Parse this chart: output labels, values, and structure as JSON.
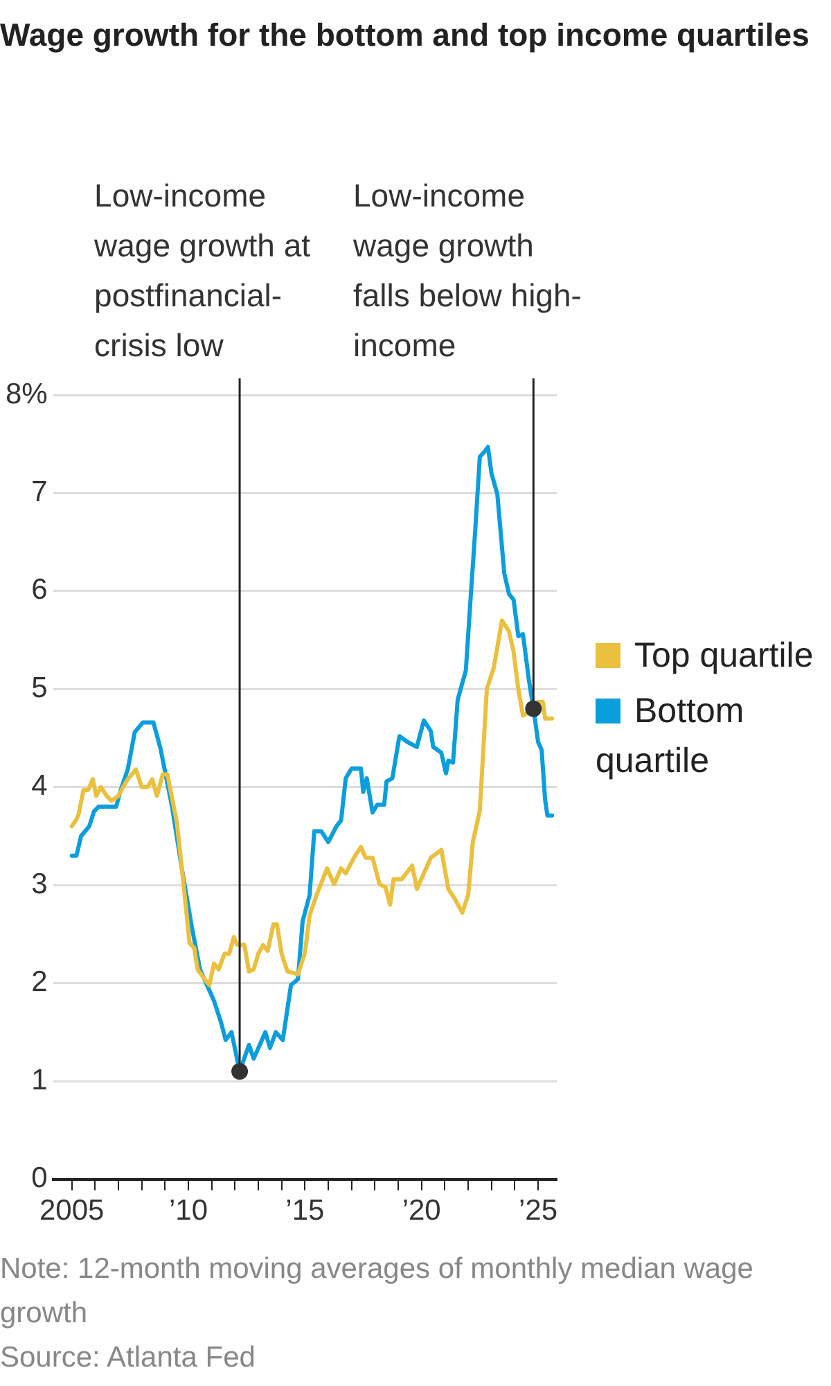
{
  "chart_data": {
    "type": "line",
    "title": "Wage growth for the bottom and top income quartiles",
    "xlim": [
      2004.2,
      2025.8
    ],
    "ylim": [
      0,
      8
    ],
    "xticks": [
      {
        "value": 2005,
        "label": "2005"
      },
      {
        "value": 2006,
        "label": null
      },
      {
        "value": 2007,
        "label": null
      },
      {
        "value": 2008,
        "label": null
      },
      {
        "value": 2009,
        "label": null
      },
      {
        "value": 2010,
        "label": "’10"
      },
      {
        "value": 2011,
        "label": null
      },
      {
        "value": 2012,
        "label": null
      },
      {
        "value": 2013,
        "label": null
      },
      {
        "value": 2014,
        "label": null
      },
      {
        "value": 2015,
        "label": "’15"
      },
      {
        "value": 2016,
        "label": null
      },
      {
        "value": 2017,
        "label": null
      },
      {
        "value": 2018,
        "label": null
      },
      {
        "value": 2019,
        "label": null
      },
      {
        "value": 2020,
        "label": "’20"
      },
      {
        "value": 2021,
        "label": null
      },
      {
        "value": 2022,
        "label": null
      },
      {
        "value": 2023,
        "label": null
      },
      {
        "value": 2024,
        "label": null
      },
      {
        "value": 2025,
        "label": "’25"
      }
    ],
    "yticks": [
      0,
      1,
      2,
      3,
      4,
      5,
      6,
      7,
      {
        "value": 8,
        "label": "8%"
      }
    ],
    "grid": "y",
    "legend": "right",
    "marker": "none",
    "line_style": "solid",
    "series": [
      {
        "name": "Top quartile",
        "color": "#ebc03f",
        "x": [
          2005.0,
          2005.2,
          2005.3,
          2005.5,
          2005.7,
          2005.9,
          2006.05,
          2006.25,
          2006.5,
          2006.7,
          2007.0,
          2007.2,
          2007.4,
          2007.75,
          2008.0,
          2008.25,
          2008.45,
          2008.65,
          2008.9,
          2009.1,
          2009.5,
          2009.75,
          2010.05,
          2010.25,
          2010.4,
          2010.7,
          2010.9,
          2011.1,
          2011.3,
          2011.55,
          2011.75,
          2011.95,
          2012.1,
          2012.4,
          2012.6,
          2012.8,
          2013.0,
          2013.2,
          2013.4,
          2013.65,
          2013.8,
          2014.0,
          2014.25,
          2014.7,
          2015.0,
          2015.2,
          2015.5,
          2015.95,
          2016.25,
          2016.55,
          2016.75,
          2017.1,
          2017.4,
          2017.6,
          2017.9,
          2018.2,
          2018.45,
          2018.65,
          2018.8,
          2019.15,
          2019.6,
          2019.8,
          2020.1,
          2020.4,
          2020.85,
          2021.15,
          2021.45,
          2021.75,
          2022.0,
          2022.2,
          2022.5,
          2022.8,
          2023.1,
          2023.45,
          2023.75,
          2023.95,
          2024.15,
          2024.35,
          2024.7,
          2025.0,
          2025.2,
          2025.3,
          2025.6
        ],
        "values": [
          3.6,
          3.67,
          3.73,
          3.97,
          3.97,
          4.08,
          3.91,
          4.0,
          3.91,
          3.86,
          3.91,
          4.0,
          4.08,
          4.18,
          4.0,
          4.0,
          4.08,
          3.91,
          4.13,
          4.13,
          3.65,
          3.11,
          2.41,
          2.36,
          2.14,
          2.04,
          1.98,
          2.2,
          2.14,
          2.3,
          2.3,
          2.47,
          2.39,
          2.39,
          2.12,
          2.14,
          2.3,
          2.39,
          2.33,
          2.6,
          2.6,
          2.3,
          2.12,
          2.09,
          2.31,
          2.69,
          2.9,
          3.17,
          3.01,
          3.17,
          3.12,
          3.28,
          3.39,
          3.28,
          3.28,
          3.01,
          2.98,
          2.8,
          3.06,
          3.06,
          3.2,
          2.96,
          3.12,
          3.28,
          3.36,
          2.96,
          2.85,
          2.72,
          2.9,
          3.44,
          3.76,
          5.0,
          5.22,
          5.7,
          5.59,
          5.38,
          5.0,
          4.73,
          4.78,
          4.87,
          4.87,
          4.7,
          4.7
        ]
      },
      {
        "name": "Bottom quartile",
        "color": "#0a9edc",
        "x": [
          2005.0,
          2005.2,
          2005.4,
          2005.75,
          2005.95,
          2006.15,
          2006.9,
          2007.1,
          2007.4,
          2007.7,
          2008.05,
          2008.5,
          2008.8,
          2009.3,
          2009.7,
          2010.15,
          2010.5,
          2010.8,
          2011.1,
          2011.4,
          2011.6,
          2011.85,
          2012.2,
          2012.6,
          2012.8,
          2013.1,
          2013.3,
          2013.5,
          2013.75,
          2014.05,
          2014.4,
          2014.7,
          2014.9,
          2015.2,
          2015.4,
          2015.7,
          2016.0,
          2016.35,
          2016.55,
          2016.75,
          2017.0,
          2017.4,
          2017.5,
          2017.65,
          2017.9,
          2018.1,
          2018.4,
          2018.5,
          2018.75,
          2019.05,
          2019.4,
          2019.8,
          2020.1,
          2020.4,
          2020.5,
          2020.85,
          2021.05,
          2021.15,
          2021.35,
          2021.55,
          2021.9,
          2022.1,
          2022.3,
          2022.5,
          2022.7,
          2022.85,
          2023.0,
          2023.25,
          2023.55,
          2023.75,
          2023.95,
          2024.15,
          2024.35,
          2024.6,
          2024.8,
          2025.0,
          2025.15,
          2025.3,
          2025.4,
          2025.6
        ],
        "values": [
          3.3,
          3.3,
          3.5,
          3.6,
          3.75,
          3.8,
          3.8,
          3.97,
          4.18,
          4.56,
          4.66,
          4.66,
          4.4,
          3.8,
          3.2,
          2.57,
          2.14,
          1.98,
          1.82,
          1.6,
          1.42,
          1.5,
          1.1,
          1.37,
          1.23,
          1.39,
          1.5,
          1.34,
          1.5,
          1.42,
          1.98,
          2.04,
          2.63,
          2.9,
          3.55,
          3.55,
          3.44,
          3.6,
          3.66,
          4.09,
          4.19,
          4.19,
          3.95,
          4.09,
          3.74,
          3.82,
          3.82,
          4.06,
          4.09,
          4.52,
          4.46,
          4.41,
          4.68,
          4.57,
          4.41,
          4.35,
          4.14,
          4.27,
          4.25,
          4.89,
          5.19,
          5.91,
          6.61,
          7.37,
          7.42,
          7.47,
          7.2,
          6.99,
          6.18,
          5.97,
          5.91,
          5.54,
          5.56,
          5.1,
          4.8,
          4.46,
          4.38,
          3.87,
          3.71,
          3.71
        ]
      }
    ],
    "annotations": [
      {
        "text": "Low-income wage growth at postfinancial-crisis low",
        "x": 2012.2,
        "y": 1.1
      },
      {
        "text": "Low-income wage growth falls below high-income",
        "x": 2024.8,
        "y": 4.8
      },
      "Note: 12-month moving averages of monthly median wage growth",
      "Source: Atlanta Fed"
    ]
  }
}
